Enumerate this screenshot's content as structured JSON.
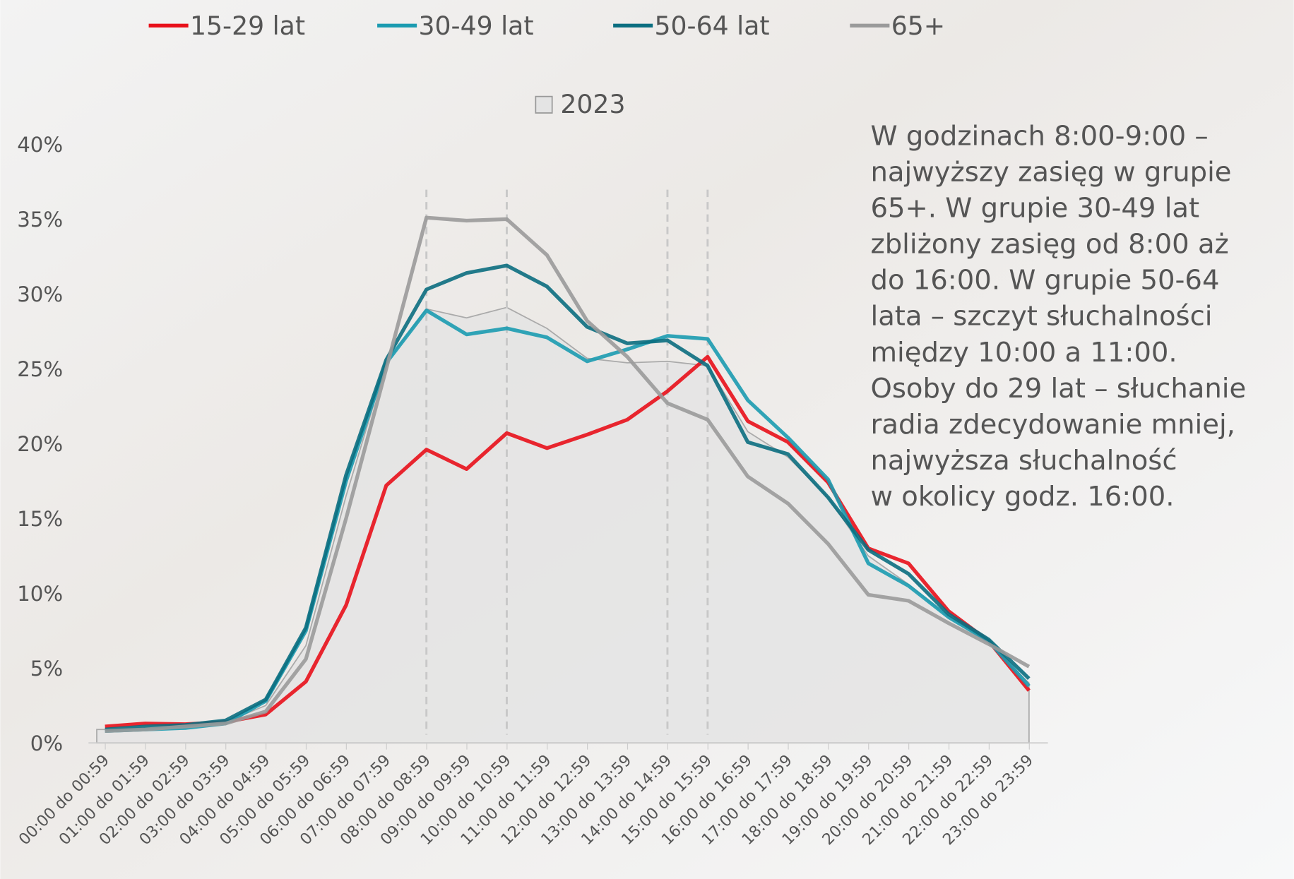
{
  "chart_data": {
    "type": "line",
    "categories": [
      "00:00 do 00:59",
      "01:00 do 01:59",
      "02:00 do 02:59",
      "03:00 do 03:59",
      "04:00 do 04:59",
      "05:00 do 05:59",
      "06:00 do 06:59",
      "07:00 do 07:59",
      "08:00 do 08:59",
      "09:00 do 09:59",
      "10:00 do 10:59",
      "11:00 do 11:59",
      "12:00 do 12:59",
      "13:00 do 13:59",
      "14:00 do 14:59",
      "15:00 do 15:59",
      "16:00 do 16:59",
      "17:00 do 17:59",
      "18:00 do 18:59",
      "19:00 do 19:59",
      "20:00 do 20:59",
      "21:00 do 21:59",
      "22:00 do 22:59",
      "23:00 do 23:59"
    ],
    "area": {
      "name": "2023",
      "color": "#e4e4e4",
      "values": [
        0.9,
        1.0,
        1.1,
        1.4,
        2.5,
        6.5,
        16.5,
        25.4,
        29.0,
        28.4,
        29.1,
        27.7,
        25.7,
        25.4,
        25.5,
        25.2,
        20.8,
        19.1,
        16.4,
        12.5,
        10.6,
        8.4,
        6.7,
        4.0
      ]
    },
    "series": [
      {
        "name": "15-29 lat",
        "color": "#e8101a",
        "values": [
          1.1,
          1.3,
          1.25,
          1.4,
          1.9,
          4.1,
          9.2,
          17.2,
          19.6,
          18.3,
          20.7,
          19.7,
          20.6,
          21.6,
          23.5,
          25.8,
          21.5,
          20.1,
          17.4,
          13.0,
          12.0,
          8.8,
          6.8,
          3.5
        ]
      },
      {
        "name": "30-49 lat",
        "color": "#1b9bb0",
        "values": [
          0.8,
          0.9,
          1.0,
          1.3,
          2.8,
          7.5,
          17.5,
          25.4,
          28.9,
          27.3,
          27.7,
          27.1,
          25.5,
          26.3,
          27.2,
          27.0,
          22.9,
          20.4,
          17.6,
          12.0,
          10.5,
          8.4,
          6.8,
          3.8
        ]
      },
      {
        "name": "50-64 lat",
        "color": "#0b6e80",
        "values": [
          0.9,
          1.1,
          1.2,
          1.5,
          2.9,
          7.7,
          17.9,
          25.6,
          30.3,
          31.4,
          31.9,
          30.5,
          27.8,
          26.7,
          26.9,
          25.2,
          20.1,
          19.3,
          16.4,
          12.9,
          11.3,
          8.6,
          6.9,
          4.3
        ]
      },
      {
        "name": "65+",
        "color": "#9a9a9a",
        "values": [
          0.8,
          0.9,
          1.1,
          1.3,
          2.1,
          5.6,
          15.0,
          25.0,
          35.1,
          34.9,
          35.0,
          32.6,
          28.2,
          25.8,
          22.7,
          21.6,
          17.8,
          16.0,
          13.3,
          9.9,
          9.5,
          8.0,
          6.6,
          5.1
        ]
      }
    ],
    "highlight_categories": [
      "08:00 do 08:59",
      "10:00 do 10:59",
      "14:00 do 14:59",
      "15:00 do 15:59"
    ],
    "ylim": [
      0,
      40
    ],
    "yticks": [
      {
        "value": 0,
        "label": "0%"
      },
      {
        "value": 5,
        "label": "5%"
      },
      {
        "value": 10,
        "label": "10%"
      },
      {
        "value": 15,
        "label": "15%"
      },
      {
        "value": 20,
        "label": "20%"
      },
      {
        "value": 25,
        "label": "25%"
      },
      {
        "value": 30,
        "label": "30%"
      },
      {
        "value": 35,
        "label": "35%"
      },
      {
        "value": 40,
        "label": "40%"
      }
    ],
    "annotation": [
      "W godzinach 8:00-9:00 –",
      "najwyższy zasięg w grupie",
      "65+. W grupie 30-49 lat",
      "zbliżony zasięg od 8:00 aż",
      "do 16:00. W grupie 50-64",
      "lata – szczyt słuchalności",
      "między 10:00 a 11:00.",
      "Osoby do 29 lat – słuchanie",
      "radia zdecydowanie mniej,",
      "najwyższa słuchalność",
      "w okolicy godz. 16:00."
    ]
  }
}
